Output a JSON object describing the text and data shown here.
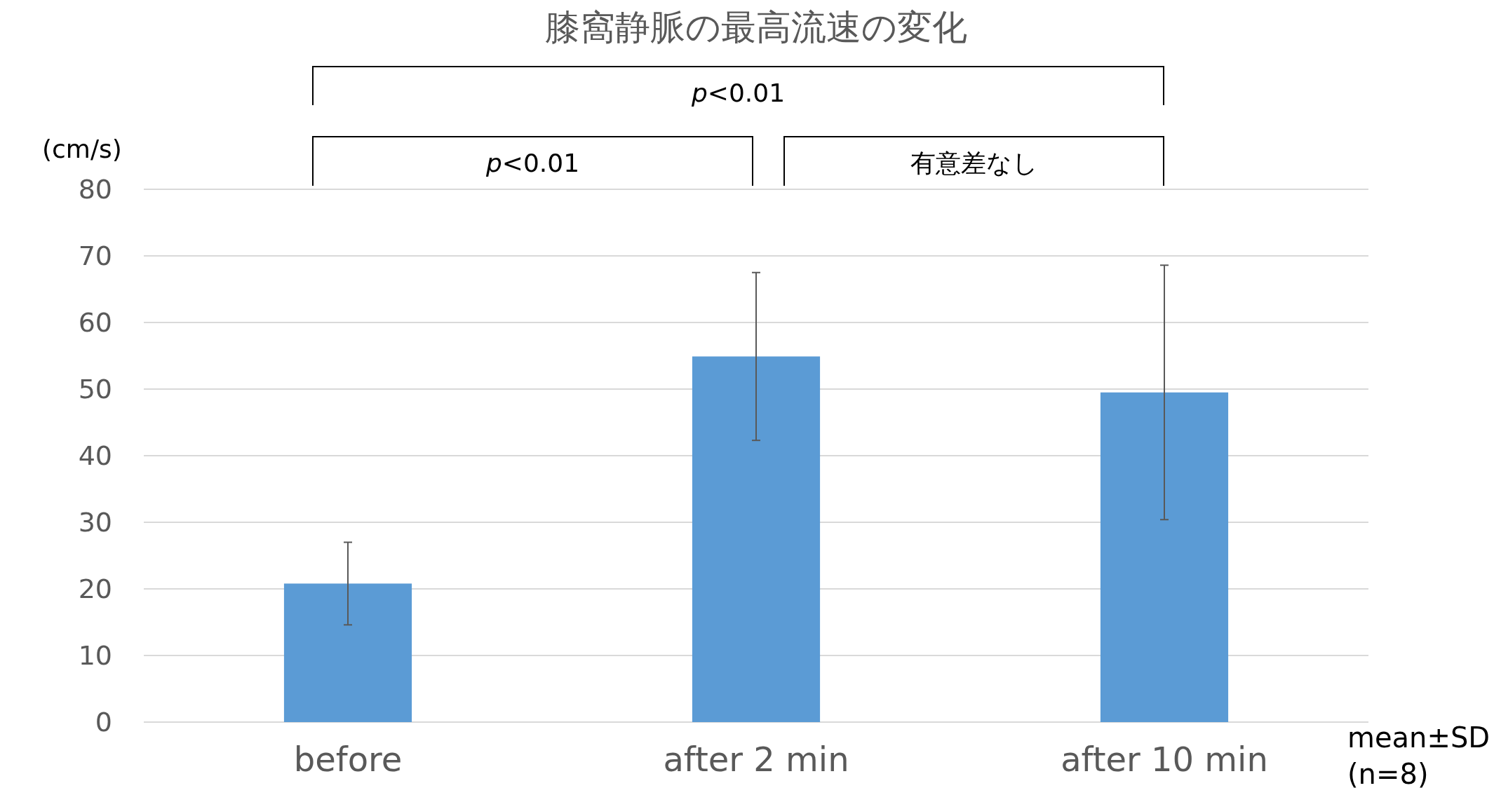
{
  "chart_data": {
    "type": "bar",
    "title": "膝窩静脈の最高流速の変化",
    "ylabel": "(cm/s)",
    "categories": [
      "before",
      "after 2 min",
      "after 10 min"
    ],
    "values": [
      20.8,
      54.9,
      49.5
    ],
    "errors": [
      6.2,
      12.6,
      19.1
    ],
    "color": "#5b9bd5",
    "ylim": [
      0,
      80
    ],
    "yticks": [
      0,
      10,
      20,
      30,
      40,
      50,
      60,
      70,
      80
    ],
    "grid": "y",
    "annotations": [
      "*p*<0.01",
      "*p*<0.01",
      "有意差なし",
      "mean±SD",
      "(n=8)"
    ]
  }
}
